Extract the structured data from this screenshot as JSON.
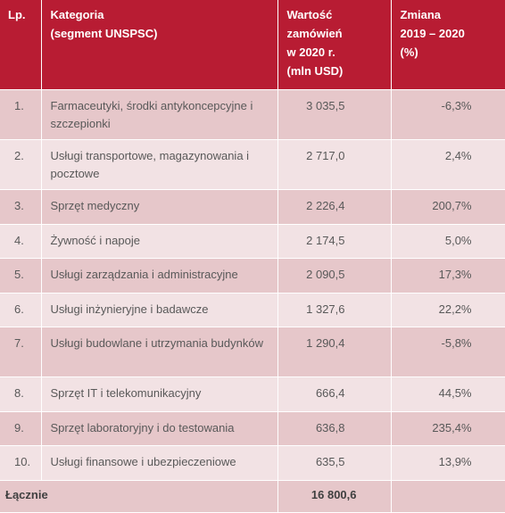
{
  "header": {
    "lp": "Lp.",
    "category_line1": "Kategoria",
    "category_line2": "(segment UNSPSC)",
    "value_line1": "Wartość",
    "value_line2": "zamówień",
    "value_line3": "w 2020 r.",
    "value_line4": "(mln USD)",
    "change_line1": "Zmiana",
    "change_line2": "2019 – 2020",
    "change_line3": "(%)"
  },
  "rows": [
    {
      "lp": "1.",
      "category": "Farmaceutyki, środki antykoncepcyjne i szczepionki",
      "value": "3 035,5",
      "change": "-6,3%"
    },
    {
      "lp": "2.",
      "category": "Usługi transportowe, magazynowania i pocztowe",
      "value": "2 717,0",
      "change": "2,4%"
    },
    {
      "lp": "3.",
      "category": "Sprzęt medyczny",
      "value": "2 226,4",
      "change": "200,7%"
    },
    {
      "lp": "4.",
      "category": "Żywność i napoje",
      "value": "2 174,5",
      "change": "5,0%"
    },
    {
      "lp": "5.",
      "category": "Usługi zarządzania i administracyjne",
      "value": "2 090,5",
      "change": "17,3%"
    },
    {
      "lp": "6.",
      "category": "Usługi inżynieryjne i badawcze",
      "value": "1 327,6",
      "change": "22,2%"
    },
    {
      "lp": "7.",
      "category": "Usługi budowlane i utrzymania budynków",
      "value": "1 290,4",
      "change": "-5,8%"
    },
    {
      "lp": "8.",
      "category": "Sprzęt IT i telekomunikacyjny",
      "value": "666,4",
      "change": "44,5%"
    },
    {
      "lp": "9.",
      "category": "Sprzęt laboratoryjny i do testowania",
      "value": "636,8",
      "change": "235,4%"
    },
    {
      "lp": "10.",
      "category": "Usługi finansowe i ubezpieczeniowe",
      "value": "635,5",
      "change": "13,9%"
    }
  ],
  "footer": {
    "label": "Łącznie",
    "total": "16 800,6"
  }
}
